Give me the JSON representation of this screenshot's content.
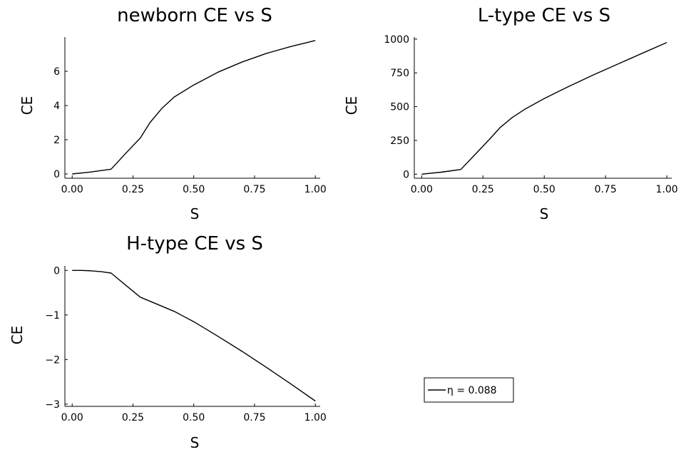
{
  "chart_data": [
    {
      "type": "line",
      "title": "newborn CE vs S",
      "xlabel": "S",
      "ylabel": "CE",
      "xlim": [
        -0.03,
        1.02
      ],
      "ylim": [
        -0.25,
        8.0
      ],
      "xticks": [
        0.0,
        0.25,
        0.5,
        0.75,
        1.0
      ],
      "xtick_labels": [
        "0.00",
        "0.25",
        "0.50",
        "0.75",
        "1.00"
      ],
      "yticks": [
        0,
        2,
        4,
        6
      ],
      "ytick_labels": [
        "0",
        "2",
        "4",
        "6"
      ],
      "grid": false,
      "series": [
        {
          "x": [
            0.0,
            0.08,
            0.16,
            0.22,
            0.28,
            0.32,
            0.37,
            0.42,
            0.5,
            0.6,
            0.7,
            0.8,
            0.9,
            1.0
          ],
          "y": [
            0.0,
            0.12,
            0.28,
            1.2,
            2.1,
            3.0,
            3.85,
            4.5,
            5.2,
            5.95,
            6.55,
            7.05,
            7.45,
            7.8
          ]
        }
      ]
    },
    {
      "type": "line",
      "title": "L-type CE vs S",
      "xlabel": "S",
      "ylabel": "CE",
      "xlim": [
        -0.03,
        1.02
      ],
      "ylim": [
        -30,
        1015
      ],
      "xticks": [
        0.0,
        0.25,
        0.5,
        0.75,
        1.0
      ],
      "xtick_labels": [
        "0.00",
        "0.25",
        "0.50",
        "0.75",
        "1.00"
      ],
      "yticks": [
        0,
        250,
        500,
        750,
        1000
      ],
      "ytick_labels": [
        "0",
        "250",
        "500",
        "750",
        "1000"
      ],
      "grid": false,
      "series": [
        {
          "x": [
            0.0,
            0.08,
            0.16,
            0.22,
            0.28,
            0.32,
            0.37,
            0.42,
            0.5,
            0.6,
            0.7,
            0.8,
            0.9,
            1.0
          ],
          "y": [
            0.0,
            15,
            35,
            150,
            265,
            345,
            420,
            480,
            560,
            650,
            735,
            815,
            895,
            975
          ]
        }
      ]
    },
    {
      "type": "line",
      "title": "H-type CE vs S",
      "xlabel": "S",
      "ylabel": "CE",
      "xlim": [
        -0.03,
        1.02
      ],
      "ylim": [
        -3.05,
        0.1
      ],
      "xticks": [
        0.0,
        0.25,
        0.5,
        0.75,
        1.0
      ],
      "xtick_labels": [
        "0.00",
        "0.25",
        "0.50",
        "0.75",
        "1.00"
      ],
      "yticks": [
        0,
        -1,
        -2,
        -3
      ],
      "ytick_labels": [
        "0",
        "−1",
        "−2",
        "−3"
      ],
      "grid": false,
      "series": [
        {
          "name": "η = 0.088",
          "x": [
            0.0,
            0.04,
            0.08,
            0.12,
            0.16,
            0.22,
            0.28,
            0.35,
            0.42,
            0.5,
            0.6,
            0.7,
            0.8,
            0.9,
            1.0
          ],
          "y": [
            0.0,
            0.0,
            -0.01,
            -0.03,
            -0.06,
            -0.33,
            -0.6,
            -0.76,
            -0.92,
            -1.15,
            -1.48,
            -1.82,
            -2.18,
            -2.55,
            -2.93
          ]
        }
      ]
    }
  ],
  "legend": {
    "label": "η = 0.088",
    "placement": "bottom-right"
  }
}
